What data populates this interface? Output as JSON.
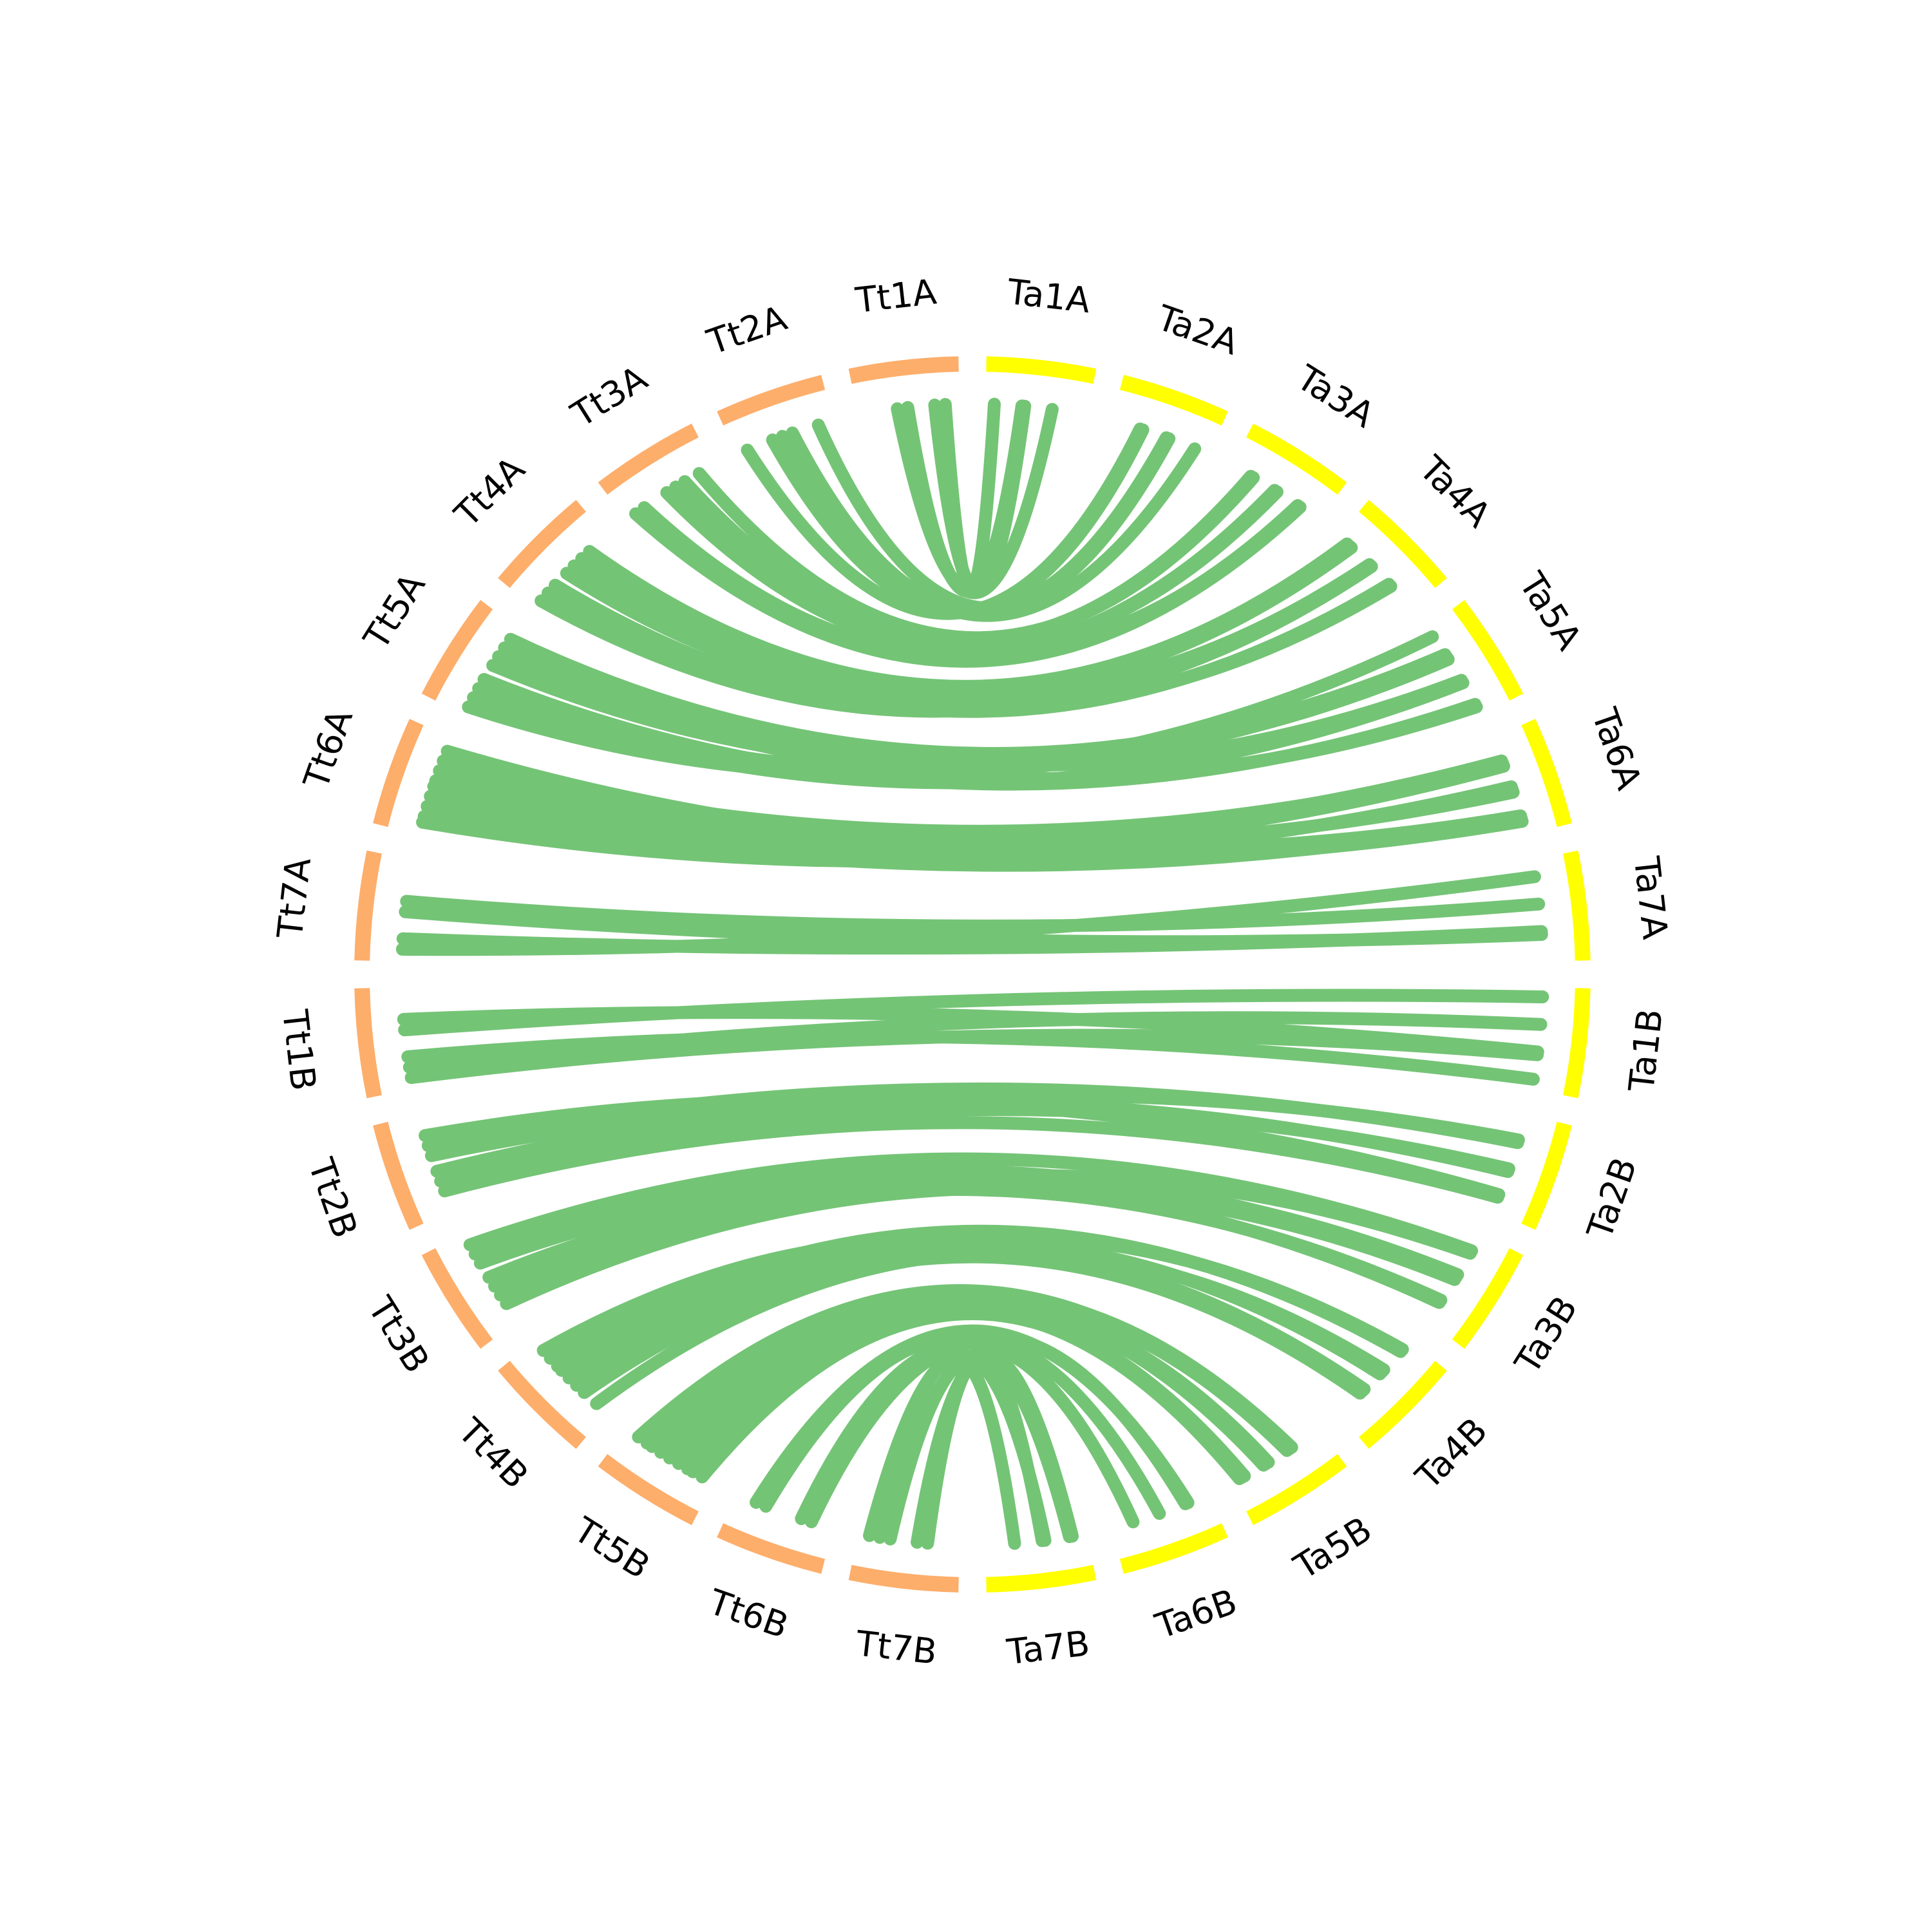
{
  "segments": [
    {
      "label": "Ta1A",
      "color": "#ffff00"
    },
    {
      "label": "Ta2A",
      "color": "#ffff00"
    },
    {
      "label": "Ta3A",
      "color": "#ffff00"
    },
    {
      "label": "Ta4A",
      "color": "#ffff00"
    },
    {
      "label": "Ta5A",
      "color": "#ffff00"
    },
    {
      "label": "Ta6A",
      "color": "#ffff00"
    },
    {
      "label": "Ta7A",
      "color": "#ffff00"
    },
    {
      "label": "Ta1B",
      "color": "#ffff00"
    },
    {
      "label": "Ta2B",
      "color": "#ffff00"
    },
    {
      "label": "Ta3B",
      "color": "#ffff00"
    },
    {
      "label": "Ta4B",
      "color": "#ffff00"
    },
    {
      "label": "Ta5B",
      "color": "#ffff00"
    },
    {
      "label": "Ta6B",
      "color": "#ffff00"
    },
    {
      "label": "Ta7B",
      "color": "#ffff00"
    },
    {
      "label": "Tt7B",
      "color": "#fdae6b"
    },
    {
      "label": "Tt6B",
      "color": "#fdae6b"
    },
    {
      "label": "Tt5B",
      "color": "#fdae6b"
    },
    {
      "label": "Tt4B",
      "color": "#fdae6b"
    },
    {
      "label": "Tt3B",
      "color": "#fdae6b"
    },
    {
      "label": "Tt2B",
      "color": "#fdae6b"
    },
    {
      "label": "Tt1B",
      "color": "#fdae6b"
    },
    {
      "label": "Tt7A",
      "color": "#fdae6b"
    },
    {
      "label": "Tt6A",
      "color": "#fdae6b"
    },
    {
      "label": "Tt5A",
      "color": "#fdae6b"
    },
    {
      "label": "Tt4A",
      "color": "#fdae6b"
    },
    {
      "label": "Tt3A",
      "color": "#fdae6b"
    },
    {
      "label": "Tt2A",
      "color": "#fdae6b"
    },
    {
      "label": "Tt1A",
      "color": "#fdae6b"
    }
  ],
  "link_color": "#74c476"
}
